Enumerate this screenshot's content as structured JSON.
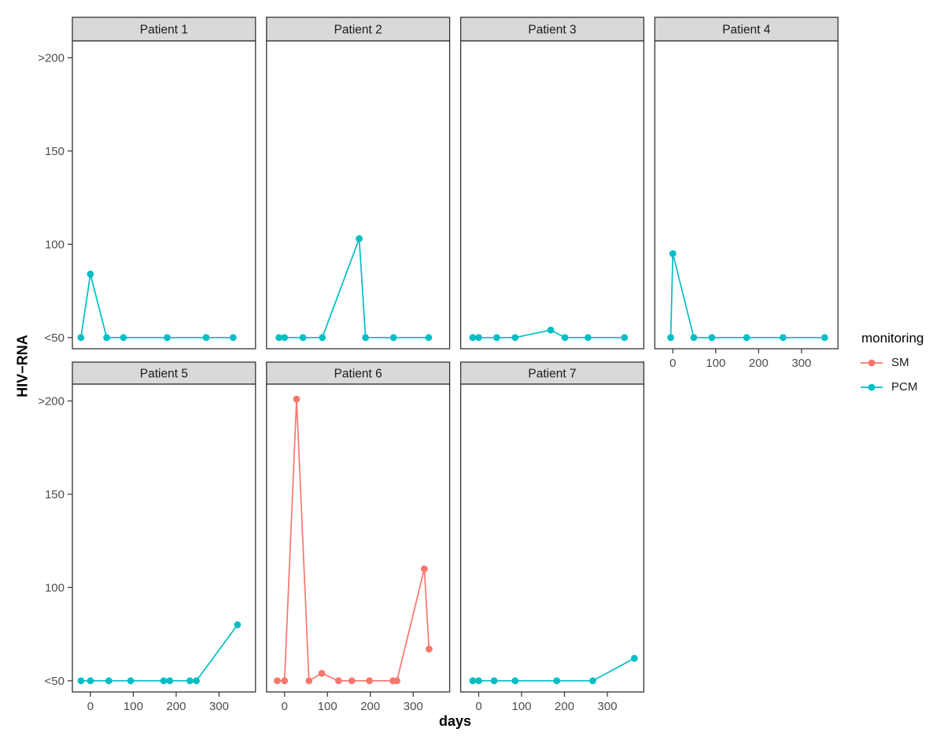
{
  "chart_data": {
    "type": "line",
    "title": "",
    "xlabel": "days",
    "ylabel": "HIV−RNA",
    "facet_variable": "patient",
    "x_domain": [
      -42,
      385
    ],
    "y_domain": [
      44,
      209
    ],
    "x_ticks": [
      0,
      100,
      200,
      300
    ],
    "y_ticks": [
      {
        "value": 50,
        "label": "<50"
      },
      {
        "value": 100,
        "label": "100"
      },
      {
        "value": 150,
        "label": "150"
      },
      {
        "value": 200,
        "label": ">200"
      }
    ],
    "grid": false,
    "legend": {
      "title": "monitoring",
      "position": "right",
      "entries": [
        {
          "label": "SM",
          "color": "#F8766D"
        },
        {
          "label": "PCM",
          "color": "#00BFC4"
        }
      ]
    },
    "facets": [
      {
        "title": "Patient 1",
        "monitoring": "PCM",
        "row": 0,
        "col": 0,
        "points": [
          [
            -22,
            50
          ],
          [
            0,
            84
          ],
          [
            38,
            50
          ],
          [
            77,
            50
          ],
          [
            179,
            50
          ],
          [
            270,
            50
          ],
          [
            333,
            50
          ]
        ]
      },
      {
        "title": "Patient 2",
        "monitoring": "PCM",
        "row": 0,
        "col": 1,
        "points": [
          [
            -13,
            50
          ],
          [
            0,
            50
          ],
          [
            43,
            50
          ],
          [
            88,
            50
          ],
          [
            174,
            103
          ],
          [
            189,
            50
          ],
          [
            254,
            50
          ],
          [
            336,
            50
          ]
        ]
      },
      {
        "title": "Patient 3",
        "monitoring": "PCM",
        "row": 0,
        "col": 2,
        "points": [
          [
            -14,
            50
          ],
          [
            0,
            50
          ],
          [
            42,
            50
          ],
          [
            85,
            50
          ],
          [
            168,
            54
          ],
          [
            201,
            50
          ],
          [
            255,
            50
          ],
          [
            340,
            50
          ]
        ]
      },
      {
        "title": "Patient 4",
        "monitoring": "PCM",
        "row": 0,
        "col": 3,
        "points": [
          [
            -5,
            50
          ],
          [
            0,
            95
          ],
          [
            49,
            50
          ],
          [
            91,
            50
          ],
          [
            172,
            50
          ],
          [
            257,
            50
          ],
          [
            354,
            50
          ]
        ]
      },
      {
        "title": "Patient 5",
        "monitoring": "PCM",
        "row": 1,
        "col": 0,
        "points": [
          [
            -22,
            50
          ],
          [
            0,
            50
          ],
          [
            43,
            50
          ],
          [
            94,
            50
          ],
          [
            171,
            50
          ],
          [
            185,
            50
          ],
          [
            232,
            50
          ],
          [
            247,
            50
          ],
          [
            343,
            80
          ]
        ]
      },
      {
        "title": "Patient 6",
        "monitoring": "SM",
        "row": 1,
        "col": 1,
        "points": [
          [
            -17,
            50
          ],
          [
            0,
            50
          ],
          [
            28,
            201
          ],
          [
            57,
            50
          ],
          [
            87,
            54
          ],
          [
            126,
            50
          ],
          [
            157,
            50
          ],
          [
            198,
            50
          ],
          [
            253,
            50
          ],
          [
            262,
            50
          ],
          [
            326,
            110
          ],
          [
            337,
            67
          ]
        ]
      },
      {
        "title": "Patient 7",
        "monitoring": "PCM",
        "row": 1,
        "col": 2,
        "points": [
          [
            -14,
            50
          ],
          [
            0,
            50
          ],
          [
            36,
            50
          ],
          [
            85,
            50
          ],
          [
            182,
            50
          ],
          [
            266,
            50
          ],
          [
            363,
            62
          ]
        ]
      }
    ],
    "colors": {
      "strip_bg": "#D9D9D9",
      "panel_border": "#333333",
      "tick_mark": "#333333",
      "tick_label": "#4D4D4D",
      "strip_text": "#1A1A1A",
      "background": "#FFFFFF"
    }
  }
}
